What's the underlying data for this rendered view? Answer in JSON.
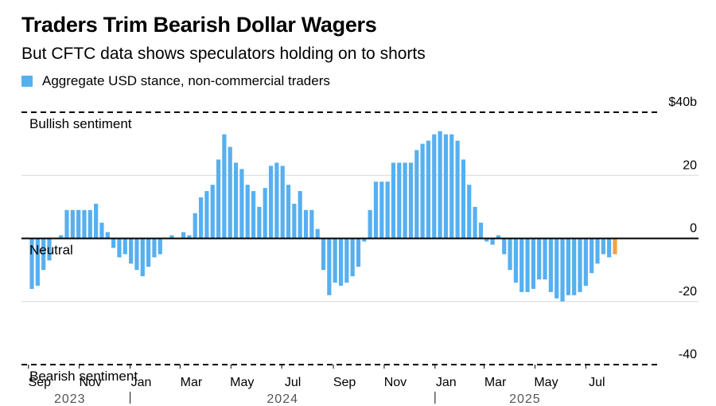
{
  "header": {
    "title": "Traders Trim Bearish Dollar Wagers",
    "subtitle": "But CFTC data shows speculators holding on to shorts"
  },
  "legend": {
    "label": "Aggregate USD stance, non-commercial traders",
    "color": "#56b0f0"
  },
  "colors": {
    "bar": "#56b0f0",
    "latest_bar": "#f5a23c",
    "grid": "#d9d9d9",
    "reference_line": "#000000"
  },
  "chart_data": {
    "type": "bar",
    "ylim": [
      -40,
      40
    ],
    "y_ticks": [
      {
        "value": 40,
        "label": "$40b"
      },
      {
        "value": 20,
        "label": "20"
      },
      {
        "value": 0,
        "label": "0"
      },
      {
        "value": -20,
        "label": "-20"
      },
      {
        "value": -40,
        "label": "-40"
      }
    ],
    "reference_lines": [
      {
        "value": 40,
        "label": "Bullish sentiment",
        "style": "dashed"
      },
      {
        "value": 0,
        "label": "Neutral",
        "style": "solid"
      },
      {
        "value": -40,
        "label": "Bearish sentiment",
        "style": "dashed"
      }
    ],
    "x_month_labels": [
      "Sep",
      "Nov",
      "Jan",
      "Mar",
      "May",
      "Jul",
      "Sep",
      "Nov",
      "Jan",
      "Mar",
      "May",
      "Jul"
    ],
    "x_year_labels": [
      "2023",
      "2024",
      "2025"
    ],
    "start_week": "2023-09-05",
    "frequency": "weekly",
    "highlight_last": true,
    "values": [
      -16,
      -15,
      -10,
      -7,
      0,
      1,
      9,
      9,
      9,
      9,
      9,
      11,
      5,
      2,
      -3,
      -6,
      -5,
      -8,
      -10,
      -12,
      -9,
      -6,
      -5,
      0,
      1,
      0,
      2,
      1,
      8,
      13,
      15,
      17,
      25,
      33,
      29,
      24,
      22,
      17,
      15,
      10,
      16,
      23,
      24,
      23,
      17,
      11,
      15,
      9,
      9,
      3,
      -10,
      -18,
      -14,
      -15,
      -14,
      -12,
      -9,
      -1,
      9,
      18,
      18,
      18,
      24,
      24,
      24,
      24,
      28,
      30,
      31,
      33,
      34,
      33,
      33,
      31,
      25,
      17,
      10,
      5,
      -1,
      -2,
      1,
      -5,
      -10,
      -14,
      -17,
      -17,
      -16,
      -13,
      -13,
      -17,
      -19,
      -20,
      -18,
      -18,
      -17,
      -15,
      -11,
      -8,
      -5,
      -6,
      -5
    ]
  }
}
